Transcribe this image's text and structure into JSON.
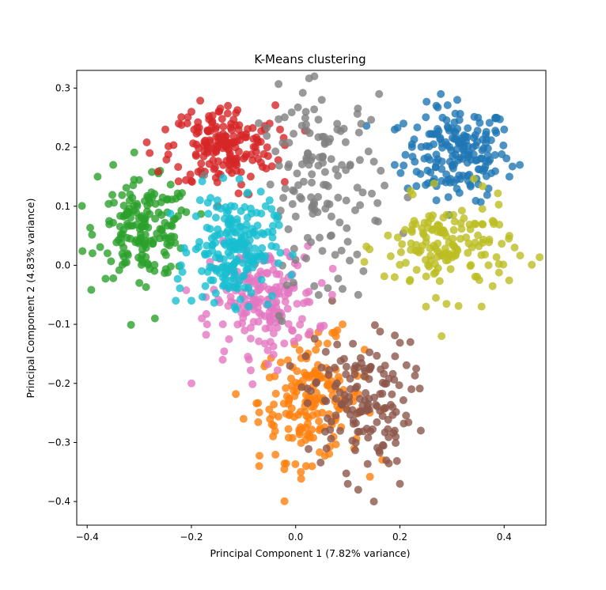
{
  "chart_data": {
    "type": "scatter",
    "title": "K-Means clustering",
    "xlabel": "Principal Component 1 (7.82% variance)",
    "ylabel": "Principal Component 2 (4.83% variance)",
    "xlim": [
      -0.42,
      0.48
    ],
    "ylim": [
      -0.44,
      0.33
    ],
    "xticks": [
      -0.4,
      -0.2,
      0.0,
      0.2,
      0.4
    ],
    "xtick_labels": [
      "−0.4",
      "−0.2",
      "0.0",
      "0.2",
      "0.4"
    ],
    "yticks": [
      -0.4,
      -0.3,
      -0.2,
      -0.1,
      0.0,
      0.1,
      0.2,
      0.3
    ],
    "ytick_labels": [
      "−0.4",
      "−0.3",
      "−0.2",
      "−0.1",
      "0.0",
      "0.1",
      "0.2",
      "0.3"
    ],
    "grid": false,
    "legend": "none",
    "series": [
      {
        "color": "#1f77b4",
        "cx": 0.31,
        "cy": 0.19,
        "sx": 0.05,
        "sy": 0.04,
        "n": 180,
        "points": [
          [
            0.43,
            0.17
          ],
          [
            0.19,
            0.23
          ],
          [
            0.27,
            0.27
          ],
          [
            0.31,
            0.28
          ],
          [
            0.35,
            0.25
          ],
          [
            0.41,
            0.15
          ],
          [
            0.4,
            0.23
          ],
          [
            0.19,
            0.17
          ],
          [
            0.37,
            0.13
          ],
          [
            0.27,
            0.11
          ]
        ]
      },
      {
        "color": "#ff7f0e",
        "cx": 0.03,
        "cy": -0.23,
        "sx": 0.05,
        "sy": 0.05,
        "n": 180,
        "points": [
          [
            -0.07,
            -0.34
          ],
          [
            -0.05,
            -0.19
          ],
          [
            0.01,
            -0.35
          ],
          [
            0.09,
            -0.1
          ],
          [
            -0.1,
            -0.26
          ],
          [
            0.08,
            -0.11
          ],
          [
            0.02,
            -0.34
          ]
        ]
      },
      {
        "color": "#2ca02c",
        "cx": -0.29,
        "cy": 0.06,
        "sx": 0.045,
        "sy": 0.04,
        "n": 170,
        "points": [
          [
            -0.38,
            0.15
          ],
          [
            -0.35,
            0.17
          ],
          [
            -0.27,
            -0.09
          ],
          [
            -0.3,
            -0.03
          ],
          [
            -0.26,
            0.16
          ],
          [
            -0.21,
            0.09
          ]
        ]
      },
      {
        "color": "#d62728",
        "cx": -0.14,
        "cy": 0.2,
        "sx": 0.05,
        "sy": 0.035,
        "n": 180,
        "points": [
          [
            -0.28,
            0.19
          ],
          [
            -0.25,
            0.23
          ],
          [
            -0.13,
            0.27
          ],
          [
            -0.05,
            0.24
          ],
          [
            -0.03,
            0.23
          ],
          [
            -0.2,
            0.26
          ],
          [
            -0.09,
            0.12
          ]
        ]
      },
      {
        "color": "#9467bd",
        "cx": 0.0,
        "cy": 0.0,
        "sx": 0.01,
        "sy": 0.01,
        "n": 0,
        "points": []
      },
      {
        "color": "#8c564b",
        "cx": 0.12,
        "cy": -0.23,
        "sx": 0.05,
        "sy": 0.055,
        "n": 150,
        "points": [
          [
            0.15,
            -0.4
          ],
          [
            0.1,
            -0.37
          ],
          [
            0.2,
            -0.37
          ],
          [
            0.24,
            -0.28
          ],
          [
            0.22,
            -0.13
          ],
          [
            0.19,
            -0.28
          ],
          [
            0.07,
            -0.06
          ],
          [
            0.12,
            -0.38
          ]
        ]
      },
      {
        "color": "#e377c2",
        "cx": -0.06,
        "cy": -0.06,
        "sx": 0.05,
        "sy": 0.045,
        "n": 180,
        "points": [
          [
            -0.2,
            -0.2
          ],
          [
            -0.17,
            -0.1
          ],
          [
            -0.14,
            -0.16
          ],
          [
            0.05,
            -0.03
          ],
          [
            0.07,
            -0.05
          ],
          [
            -0.18,
            -0.09
          ]
        ]
      },
      {
        "color": "#7f7f7f",
        "cx": 0.05,
        "cy": 0.14,
        "sx": 0.06,
        "sy": 0.08,
        "n": 140,
        "points": [
          [
            0.16,
            0.29
          ],
          [
            0.05,
            0.28
          ],
          [
            0.08,
            0.23
          ],
          [
            0.13,
            -0.01
          ],
          [
            0.1,
            0.04
          ],
          [
            -0.02,
            0.13
          ],
          [
            0.09,
            -0.04
          ],
          [
            0.12,
            -0.05
          ]
        ]
      },
      {
        "color": "#bcbd22",
        "cx": 0.29,
        "cy": 0.03,
        "sx": 0.06,
        "sy": 0.04,
        "n": 150,
        "points": [
          [
            0.21,
            0.06
          ],
          [
            0.19,
            -0.02
          ],
          [
            0.25,
            -0.07
          ],
          [
            0.28,
            -0.12
          ],
          [
            0.38,
            0.07
          ],
          [
            0.42,
            0.03
          ],
          [
            0.37,
            0.0
          ],
          [
            0.41,
            0.05
          ]
        ]
      },
      {
        "color": "#17becf",
        "cx": -0.12,
        "cy": 0.03,
        "sx": 0.04,
        "sy": 0.045,
        "n": 200,
        "points": [
          [
            -0.23,
            -0.06
          ],
          [
            -0.2,
            -0.06
          ],
          [
            -0.22,
            0.0
          ],
          [
            -0.15,
            0.11
          ],
          [
            -0.05,
            0.11
          ],
          [
            -0.09,
            -0.07
          ]
        ]
      }
    ]
  }
}
